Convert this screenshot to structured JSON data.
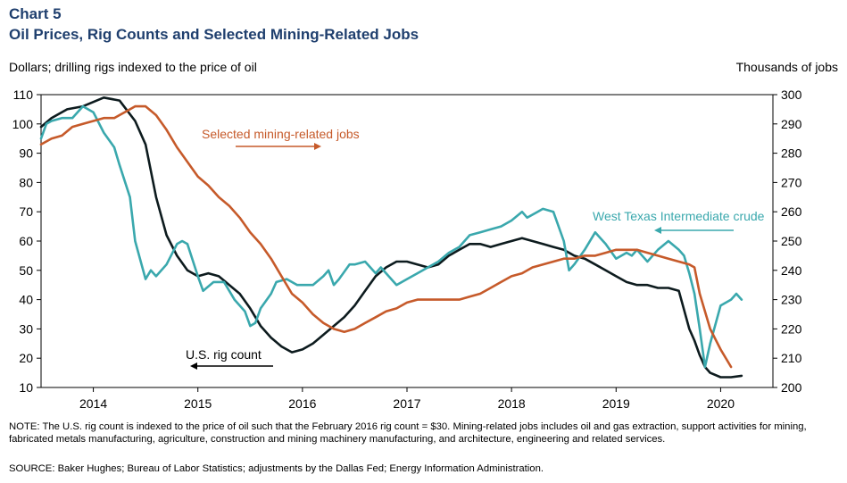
{
  "header": {
    "chart_number": "Chart 5",
    "title": "Oil Prices, Rig Counts and Selected Mining-Related Jobs",
    "left_axis_label": "Dollars; drilling rigs indexed to the price of oil",
    "right_axis_label": "Thousands  of jobs"
  },
  "footer": {
    "note": "NOTE: The U.S. rig count is indexed to the price of oil such that the February 2016 rig count = $30. Mining-related  jobs includes oil and gas extraction, support activities for mining, fabricated metals manufacturing, agriculture, construction and mining machinery manufacturing, and architecture, engineering and related services.",
    "source": "SOURCE: Baker Hughes; Bureau of Labor Statistics; adjustments by the Dallas Fed; Energy Information  Administration."
  },
  "colors": {
    "rig": "#0d1b1e",
    "wti": "#3aa8ad",
    "jobs": "#c65a2a"
  },
  "chart_data": {
    "type": "line",
    "x_unit": "year (decimal)",
    "xlim": [
      2013.5,
      2020.5
    ],
    "x_ticks": [
      2014,
      2015,
      2016,
      2017,
      2018,
      2019,
      2020
    ],
    "x_tick_labels": [
      "2014",
      "2015",
      "2016",
      "2017",
      "2018",
      "2019",
      "2020"
    ],
    "y_left": {
      "label": "Dollars; drilling rigs indexed to the price of oil",
      "lim": [
        10,
        110
      ],
      "ticks": [
        10,
        20,
        30,
        40,
        50,
        60,
        70,
        80,
        90,
        100,
        110
      ],
      "tick_labels": [
        "10",
        "20",
        "30",
        "40",
        "50",
        "60",
        "70",
        "80",
        "90",
        "100",
        "110"
      ]
    },
    "y_right": {
      "label": "Thousands  of jobs",
      "lim": [
        200,
        300
      ],
      "ticks": [
        200,
        210,
        220,
        230,
        240,
        250,
        260,
        270,
        280,
        290,
        300
      ],
      "tick_labels": [
        "200",
        "210",
        "220",
        "230",
        "240",
        "250",
        "260",
        "270",
        "280",
        "290",
        "300"
      ]
    },
    "series": [
      {
        "name": "U.S. rig count",
        "axis": "left",
        "color": "#0d1b1e",
        "x": [
          2013.5,
          2013.6,
          2013.75,
          2013.9,
          2014.1,
          2014.25,
          2014.4,
          2014.5,
          2014.6,
          2014.7,
          2014.8,
          2014.9,
          2015.0,
          2015.1,
          2015.2,
          2015.3,
          2015.4,
          2015.5,
          2015.6,
          2015.7,
          2015.8,
          2015.9,
          2016.0,
          2016.1,
          2016.2,
          2016.3,
          2016.4,
          2016.5,
          2016.6,
          2016.7,
          2016.8,
          2016.9,
          2017.0,
          2017.1,
          2017.2,
          2017.3,
          2017.4,
          2017.5,
          2017.6,
          2017.7,
          2017.8,
          2017.9,
          2018.0,
          2018.1,
          2018.2,
          2018.3,
          2018.4,
          2018.5,
          2018.6,
          2018.7,
          2018.8,
          2018.9,
          2019.0,
          2019.1,
          2019.2,
          2019.3,
          2019.4,
          2019.5,
          2019.6,
          2019.7,
          2019.75,
          2019.8,
          2019.85,
          2019.9,
          2020.0,
          2020.1,
          2020.2
        ],
        "values": [
          99,
          102,
          105,
          106,
          109,
          108,
          101,
          93,
          75,
          62,
          55,
          50,
          48,
          49,
          48,
          45,
          42,
          37,
          31,
          27,
          24,
          22,
          23,
          25,
          28,
          31,
          34,
          38,
          43,
          48,
          51,
          53,
          53,
          52,
          51,
          52,
          55,
          57,
          59,
          59,
          58,
          59,
          60,
          61,
          60,
          59,
          58,
          57,
          55,
          54,
          52,
          50,
          48,
          46,
          45,
          45,
          44,
          44,
          43,
          30,
          26,
          21,
          17,
          15,
          13.5,
          13.5,
          14
        ]
      },
      {
        "name": "West Texas Intermediate  crude",
        "axis": "left",
        "color": "#3aa8ad",
        "x": [
          2013.5,
          2013.55,
          2013.6,
          2013.7,
          2013.8,
          2013.9,
          2014.0,
          2014.1,
          2014.2,
          2014.25,
          2014.35,
          2014.4,
          2014.5,
          2014.55,
          2014.6,
          2014.7,
          2014.8,
          2014.85,
          2014.9,
          2015.0,
          2015.05,
          2015.15,
          2015.25,
          2015.35,
          2015.45,
          2015.5,
          2015.55,
          2015.6,
          2015.7,
          2015.75,
          2015.85,
          2015.95,
          2016.0,
          2016.1,
          2016.2,
          2016.25,
          2016.3,
          2016.35,
          2016.45,
          2016.5,
          2016.6,
          2016.7,
          2016.75,
          2016.8,
          2016.9,
          2017.0,
          2017.1,
          2017.2,
          2017.3,
          2017.4,
          2017.5,
          2017.6,
          2017.7,
          2017.8,
          2017.9,
          2018.0,
          2018.1,
          2018.15,
          2018.25,
          2018.3,
          2018.4,
          2018.5,
          2018.55,
          2018.6,
          2018.7,
          2018.8,
          2018.85,
          2018.9,
          2019.0,
          2019.1,
          2019.15,
          2019.2,
          2019.3,
          2019.4,
          2019.5,
          2019.6,
          2019.65,
          2019.7,
          2019.75,
          2019.8,
          2019.85,
          2019.9,
          2020.0,
          2020.1,
          2020.15,
          2020.2
        ],
        "values": [
          95,
          100,
          101,
          102,
          102,
          106,
          104,
          97,
          92,
          86,
          75,
          60,
          47,
          50,
          48,
          52,
          59,
          60,
          59,
          48,
          43,
          46,
          46,
          40,
          36,
          31,
          32,
          37,
          42,
          46,
          47,
          45,
          45,
          45,
          48,
          50,
          45,
          47,
          52,
          52,
          53,
          49,
          51,
          49,
          45,
          47,
          49,
          51,
          53,
          56,
          58,
          62,
          63,
          64,
          65,
          67,
          70,
          68,
          70,
          71,
          70,
          60,
          50,
          52,
          57,
          63,
          61,
          59,
          54,
          56,
          55,
          57,
          53,
          57,
          60,
          57,
          55,
          49,
          42,
          30,
          17,
          25,
          38,
          40,
          42,
          40
        ]
      },
      {
        "name": "Selected mining-related jobs",
        "axis": "right",
        "color": "#c65a2a",
        "x": [
          2013.5,
          2013.6,
          2013.7,
          2013.8,
          2013.9,
          2014.0,
          2014.1,
          2014.2,
          2014.3,
          2014.4,
          2014.5,
          2014.6,
          2014.7,
          2014.8,
          2014.9,
          2015.0,
          2015.1,
          2015.2,
          2015.3,
          2015.4,
          2015.5,
          2015.6,
          2015.7,
          2015.8,
          2015.9,
          2016.0,
          2016.1,
          2016.2,
          2016.3,
          2016.4,
          2016.5,
          2016.6,
          2016.7,
          2016.8,
          2016.9,
          2017.0,
          2017.1,
          2017.2,
          2017.3,
          2017.4,
          2017.5,
          2017.6,
          2017.7,
          2017.8,
          2017.9,
          2018.0,
          2018.1,
          2018.2,
          2018.3,
          2018.4,
          2018.5,
          2018.6,
          2018.7,
          2018.8,
          2018.9,
          2019.0,
          2019.1,
          2019.2,
          2019.3,
          2019.4,
          2019.5,
          2019.6,
          2019.7,
          2019.75,
          2019.8,
          2019.9,
          2020.0,
          2020.1
        ],
        "values": [
          283,
          285,
          286,
          289,
          290,
          291,
          292,
          292,
          294,
          296,
          296,
          293,
          288,
          282,
          277,
          272,
          269,
          265,
          262,
          258,
          253,
          249,
          244,
          238,
          232,
          229,
          225,
          222,
          220,
          219,
          220,
          222,
          224,
          226,
          227,
          229,
          230,
          230,
          230,
          230,
          230,
          231,
          232,
          234,
          236,
          238,
          239,
          241,
          242,
          243,
          244,
          244,
          245,
          245,
          246,
          247,
          247,
          247,
          246,
          245,
          244,
          243,
          242,
          241,
          232,
          220,
          213,
          207
        ]
      }
    ],
    "annotations": [
      {
        "text": "Selected mining-related jobs",
        "series": "jobs",
        "arrow": "right"
      },
      {
        "text": "West Texas Intermediate  crude",
        "series": "wti",
        "arrow": "left"
      },
      {
        "text": "U.S. rig count",
        "series": "rig",
        "arrow": "left"
      }
    ]
  }
}
